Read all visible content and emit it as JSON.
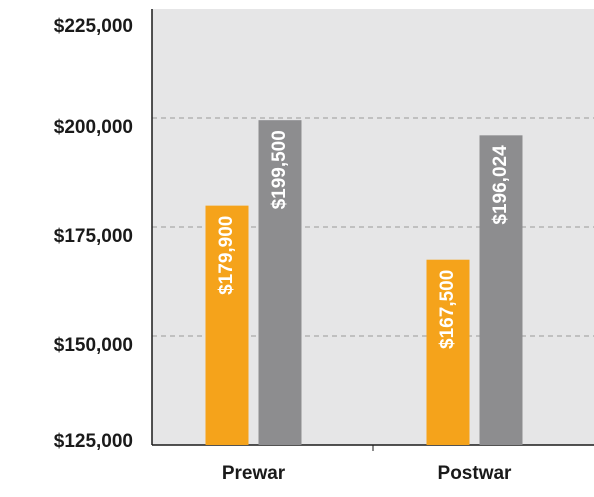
{
  "chart_data": {
    "type": "bar",
    "categories": [
      "Prewar",
      "Postwar"
    ],
    "series": [
      {
        "color": "#f5a31b",
        "values": [
          179900,
          167500
        ],
        "value_labels": [
          "$179,900",
          "$167,500"
        ]
      },
      {
        "color": "#8d8d8f",
        "values": [
          199500,
          196024
        ],
        "value_labels": [
          "$199,500",
          "$196,024"
        ]
      }
    ],
    "ylim": [
      125000,
      225000
    ],
    "yticks": [
      {
        "value": 125000,
        "label": "$125,000"
      },
      {
        "value": 150000,
        "label": "$150,000"
      },
      {
        "value": 175000,
        "label": "$175,000"
      },
      {
        "value": 200000,
        "label": "$200,000"
      },
      {
        "value": 225000,
        "label": "$225,000"
      }
    ],
    "grid": true
  }
}
